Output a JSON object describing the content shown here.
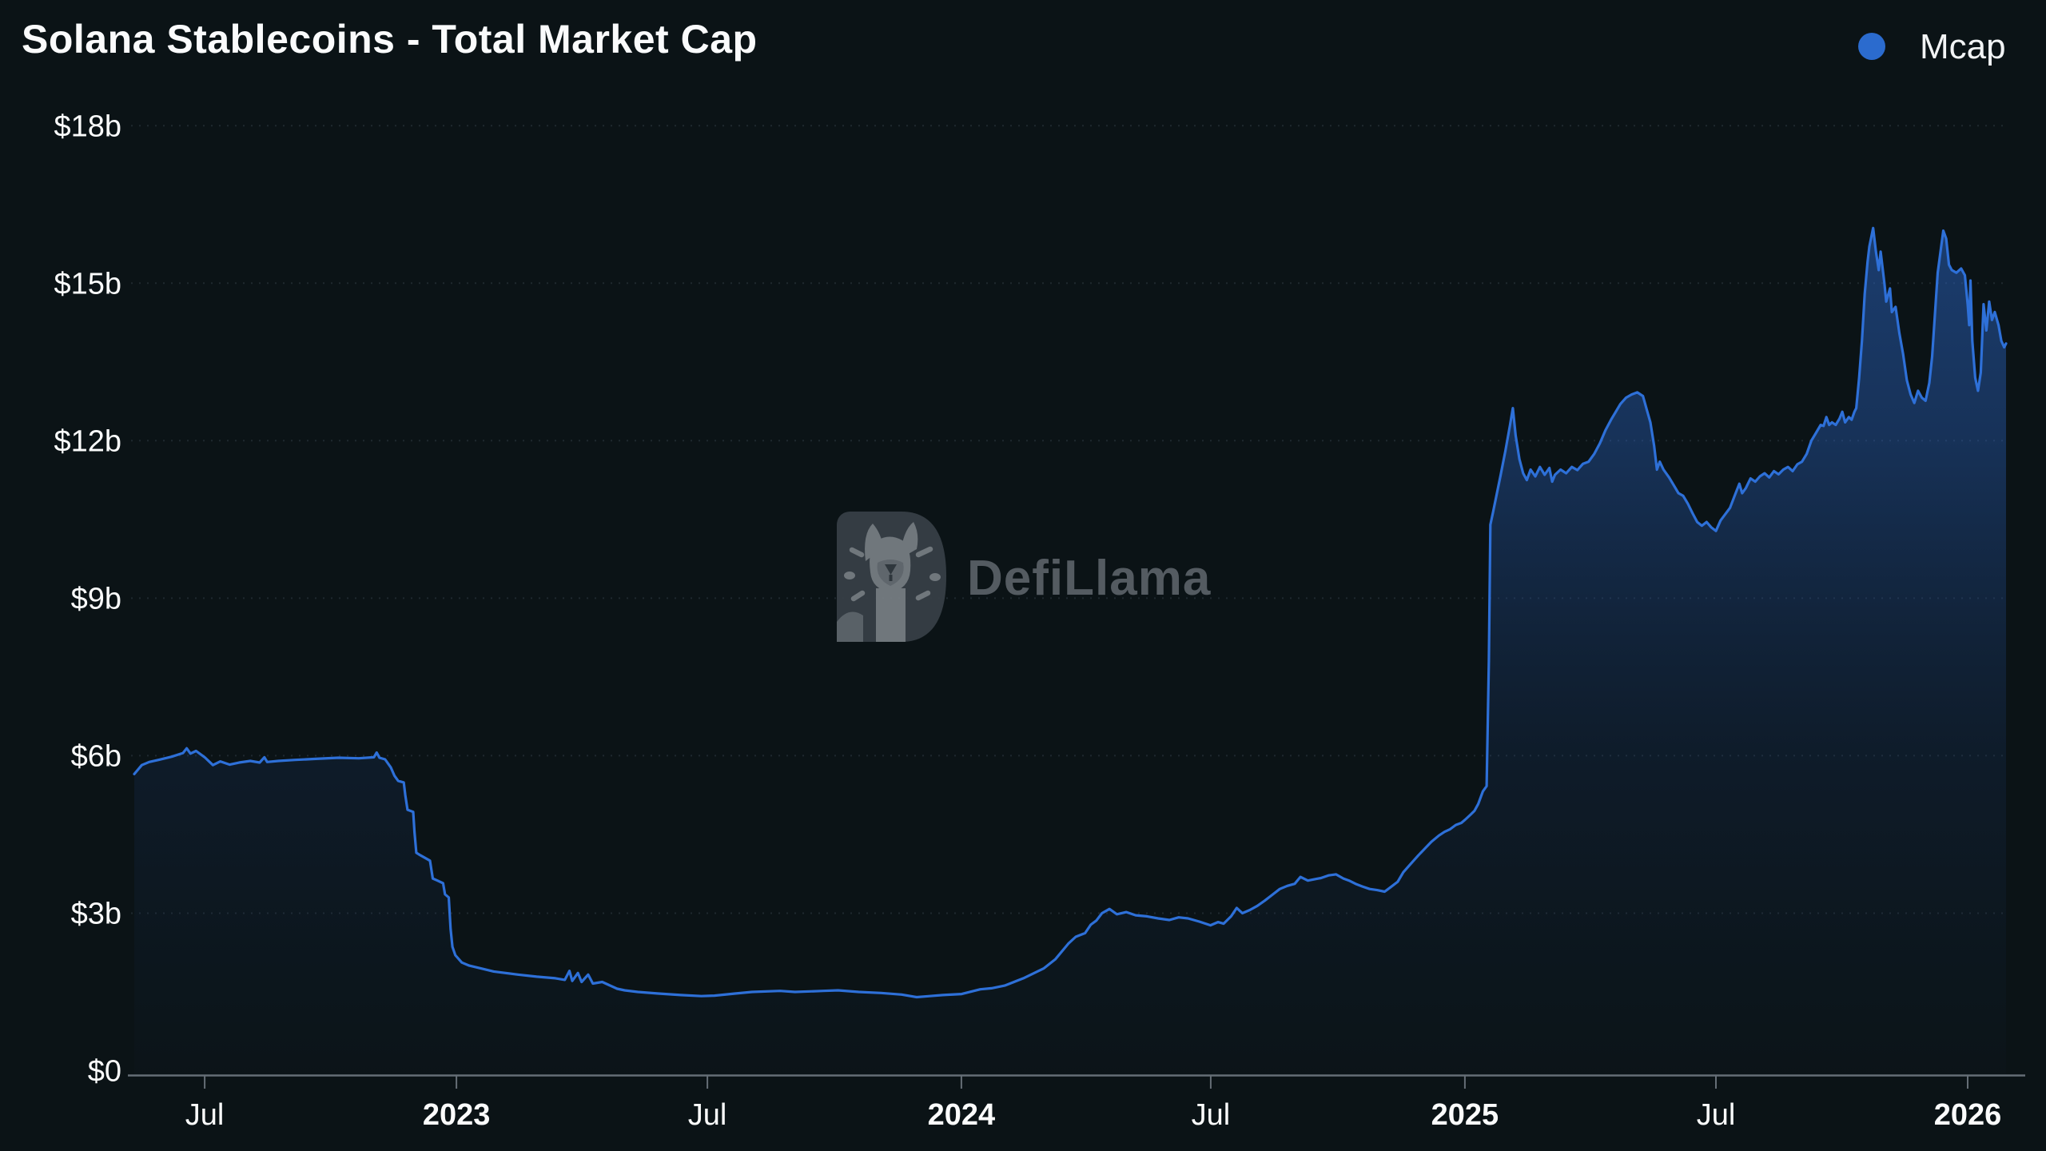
{
  "page": {
    "background": "#0b1316"
  },
  "header": {
    "title": "Solana Stablecoins - Total Market Cap"
  },
  "legend": {
    "items": [
      {
        "label": "Mcap",
        "color": "#2b6bce"
      }
    ]
  },
  "watermark": {
    "text": "DefiLlama"
  },
  "chart_data": {
    "type": "area",
    "title": "Solana Stablecoins - Total Market Cap",
    "xlabel": "",
    "ylabel": "",
    "ylim": [
      0,
      18
    ],
    "grid": "dotted-horizontal",
    "legend_position": "top-right",
    "line_color": "#2e70d8",
    "y_ticks": [
      {
        "value": 0,
        "label": "$0"
      },
      {
        "value": 3,
        "label": "$3b"
      },
      {
        "value": 6,
        "label": "$6b"
      },
      {
        "value": 9,
        "label": "$9b"
      },
      {
        "value": 12,
        "label": "$12b"
      },
      {
        "value": 15,
        "label": "$15b"
      },
      {
        "value": 18,
        "label": "$18b"
      }
    ],
    "x_ticks": [
      {
        "f": 0.0376,
        "label": "Jul",
        "bold": false
      },
      {
        "f": 0.1721,
        "label": "2023",
        "bold": true
      },
      {
        "f": 0.3062,
        "label": "Jul",
        "bold": false
      },
      {
        "f": 0.4419,
        "label": "2024",
        "bold": true
      },
      {
        "f": 0.5751,
        "label": "Jul",
        "bold": false
      },
      {
        "f": 0.7109,
        "label": "2025",
        "bold": true
      },
      {
        "f": 0.845,
        "label": "Jul",
        "bold": false
      },
      {
        "f": 0.9795,
        "label": "2026",
        "bold": true
      }
    ],
    "series": [
      {
        "name": "Mcap",
        "color": "#2e70d8",
        "unit": "$b",
        "points": [
          [
            0.0,
            5.65
          ],
          [
            0.004,
            5.82
          ],
          [
            0.008,
            5.88
          ],
          [
            0.013,
            5.92
          ],
          [
            0.02,
            5.98
          ],
          [
            0.026,
            6.05
          ],
          [
            0.028,
            6.14
          ],
          [
            0.03,
            6.04
          ],
          [
            0.033,
            6.09
          ],
          [
            0.0376,
            5.97
          ],
          [
            0.042,
            5.82
          ],
          [
            0.046,
            5.89
          ],
          [
            0.051,
            5.83
          ],
          [
            0.056,
            5.87
          ],
          [
            0.062,
            5.9
          ],
          [
            0.067,
            5.87
          ],
          [
            0.0695,
            5.97
          ],
          [
            0.071,
            5.88
          ],
          [
            0.077,
            5.9
          ],
          [
            0.086,
            5.92
          ],
          [
            0.097,
            5.94
          ],
          [
            0.109,
            5.96
          ],
          [
            0.12,
            5.95
          ],
          [
            0.128,
            5.97
          ],
          [
            0.1295,
            6.06
          ],
          [
            0.131,
            5.96
          ],
          [
            0.134,
            5.93
          ],
          [
            0.137,
            5.78
          ],
          [
            0.139,
            5.62
          ],
          [
            0.141,
            5.52
          ],
          [
            0.144,
            5.49
          ],
          [
            0.1448,
            5.25
          ],
          [
            0.146,
            4.97
          ],
          [
            0.149,
            4.93
          ],
          [
            0.1497,
            4.55
          ],
          [
            0.1507,
            4.15
          ],
          [
            0.153,
            4.1
          ],
          [
            0.155,
            4.06
          ],
          [
            0.158,
            4.0
          ],
          [
            0.1595,
            3.66
          ],
          [
            0.162,
            3.62
          ],
          [
            0.165,
            3.57
          ],
          [
            0.166,
            3.36
          ],
          [
            0.168,
            3.3
          ],
          [
            0.169,
            2.7
          ],
          [
            0.17,
            2.36
          ],
          [
            0.1715,
            2.2
          ],
          [
            0.175,
            2.06
          ],
          [
            0.179,
            2.0
          ],
          [
            0.185,
            1.95
          ],
          [
            0.192,
            1.89
          ],
          [
            0.205,
            1.83
          ],
          [
            0.215,
            1.79
          ],
          [
            0.225,
            1.76
          ],
          [
            0.23,
            1.73
          ],
          [
            0.2325,
            1.9
          ],
          [
            0.234,
            1.71
          ],
          [
            0.237,
            1.86
          ],
          [
            0.239,
            1.69
          ],
          [
            0.2425,
            1.83
          ],
          [
            0.245,
            1.66
          ],
          [
            0.25,
            1.69
          ],
          [
            0.258,
            1.56
          ],
          [
            0.262,
            1.53
          ],
          [
            0.269,
            1.5
          ],
          [
            0.28,
            1.47
          ],
          [
            0.292,
            1.44
          ],
          [
            0.303,
            1.42
          ],
          [
            0.31,
            1.43
          ],
          [
            0.321,
            1.47
          ],
          [
            0.33,
            1.5
          ],
          [
            0.345,
            1.52
          ],
          [
            0.353,
            1.5
          ],
          [
            0.368,
            1.52
          ],
          [
            0.376,
            1.53
          ],
          [
            0.387,
            1.5
          ],
          [
            0.399,
            1.48
          ],
          [
            0.41,
            1.45
          ],
          [
            0.418,
            1.4
          ],
          [
            0.425,
            1.42
          ],
          [
            0.432,
            1.44
          ],
          [
            0.442,
            1.46
          ],
          [
            0.452,
            1.55
          ],
          [
            0.458,
            1.57
          ],
          [
            0.465,
            1.62
          ],
          [
            0.475,
            1.76
          ],
          [
            0.486,
            1.95
          ],
          [
            0.492,
            2.12
          ],
          [
            0.499,
            2.42
          ],
          [
            0.503,
            2.55
          ],
          [
            0.508,
            2.62
          ],
          [
            0.511,
            2.78
          ],
          [
            0.514,
            2.86
          ],
          [
            0.517,
            3.0
          ],
          [
            0.521,
            3.08
          ],
          [
            0.525,
            2.98
          ],
          [
            0.53,
            3.02
          ],
          [
            0.535,
            2.96
          ],
          [
            0.541,
            2.94
          ],
          [
            0.547,
            2.9
          ],
          [
            0.553,
            2.87
          ],
          [
            0.558,
            2.92
          ],
          [
            0.563,
            2.9
          ],
          [
            0.569,
            2.84
          ],
          [
            0.575,
            2.77
          ],
          [
            0.579,
            2.83
          ],
          [
            0.582,
            2.8
          ],
          [
            0.586,
            2.94
          ],
          [
            0.589,
            3.1
          ],
          [
            0.592,
            3.0
          ],
          [
            0.596,
            3.06
          ],
          [
            0.6,
            3.14
          ],
          [
            0.604,
            3.24
          ],
          [
            0.608,
            3.35
          ],
          [
            0.612,
            3.46
          ],
          [
            0.616,
            3.52
          ],
          [
            0.62,
            3.56
          ],
          [
            0.623,
            3.69
          ],
          [
            0.627,
            3.62
          ],
          [
            0.631,
            3.65
          ],
          [
            0.634,
            3.67
          ],
          [
            0.638,
            3.72
          ],
          [
            0.642,
            3.74
          ],
          [
            0.646,
            3.66
          ],
          [
            0.649,
            3.62
          ],
          [
            0.653,
            3.55
          ],
          [
            0.656,
            3.51
          ],
          [
            0.66,
            3.46
          ],
          [
            0.664,
            3.44
          ],
          [
            0.668,
            3.41
          ],
          [
            0.671,
            3.49
          ],
          [
            0.675,
            3.6
          ],
          [
            0.678,
            3.78
          ],
          [
            0.682,
            3.94
          ],
          [
            0.686,
            4.1
          ],
          [
            0.69,
            4.25
          ],
          [
            0.693,
            4.36
          ],
          [
            0.697,
            4.48
          ],
          [
            0.7,
            4.55
          ],
          [
            0.703,
            4.6
          ],
          [
            0.706,
            4.68
          ],
          [
            0.709,
            4.72
          ],
          [
            0.711,
            4.78
          ],
          [
            0.714,
            4.88
          ],
          [
            0.716,
            4.95
          ],
          [
            0.718,
            5.08
          ],
          [
            0.7205,
            5.32
          ],
          [
            0.7225,
            5.42
          ],
          [
            0.7237,
            7.8
          ],
          [
            0.7245,
            10.4
          ],
          [
            0.726,
            10.65
          ],
          [
            0.728,
            11.0
          ],
          [
            0.73,
            11.35
          ],
          [
            0.7325,
            11.8
          ],
          [
            0.735,
            12.3
          ],
          [
            0.7365,
            12.62
          ],
          [
            0.738,
            12.1
          ],
          [
            0.74,
            11.65
          ],
          [
            0.742,
            11.38
          ],
          [
            0.744,
            11.25
          ],
          [
            0.746,
            11.45
          ],
          [
            0.7485,
            11.32
          ],
          [
            0.751,
            11.5
          ],
          [
            0.7535,
            11.35
          ],
          [
            0.756,
            11.48
          ],
          [
            0.7575,
            11.22
          ],
          [
            0.759,
            11.35
          ],
          [
            0.762,
            11.45
          ],
          [
            0.765,
            11.38
          ],
          [
            0.768,
            11.5
          ],
          [
            0.771,
            11.44
          ],
          [
            0.774,
            11.56
          ],
          [
            0.777,
            11.6
          ],
          [
            0.78,
            11.75
          ],
          [
            0.783,
            11.95
          ],
          [
            0.786,
            12.2
          ],
          [
            0.789,
            12.4
          ],
          [
            0.7915,
            12.55
          ],
          [
            0.794,
            12.7
          ],
          [
            0.797,
            12.82
          ],
          [
            0.8,
            12.88
          ],
          [
            0.803,
            12.92
          ],
          [
            0.806,
            12.85
          ],
          [
            0.808,
            12.6
          ],
          [
            0.81,
            12.35
          ],
          [
            0.812,
            11.9
          ],
          [
            0.8135,
            11.45
          ],
          [
            0.815,
            11.6
          ],
          [
            0.817,
            11.45
          ],
          [
            0.82,
            11.3
          ],
          [
            0.8225,
            11.15
          ],
          [
            0.825,
            11.0
          ],
          [
            0.8275,
            10.95
          ],
          [
            0.83,
            10.8
          ],
          [
            0.8325,
            10.62
          ],
          [
            0.835,
            10.45
          ],
          [
            0.8375,
            10.38
          ],
          [
            0.84,
            10.45
          ],
          [
            0.8425,
            10.35
          ],
          [
            0.845,
            10.28
          ],
          [
            0.8475,
            10.48
          ],
          [
            0.85,
            10.6
          ],
          [
            0.8525,
            10.72
          ],
          [
            0.855,
            10.95
          ],
          [
            0.8575,
            11.18
          ],
          [
            0.859,
            11.0
          ],
          [
            0.861,
            11.1
          ],
          [
            0.8635,
            11.28
          ],
          [
            0.866,
            11.22
          ],
          [
            0.8685,
            11.32
          ],
          [
            0.871,
            11.38
          ],
          [
            0.8735,
            11.3
          ],
          [
            0.876,
            11.42
          ],
          [
            0.8785,
            11.36
          ],
          [
            0.881,
            11.45
          ],
          [
            0.8835,
            11.5
          ],
          [
            0.886,
            11.42
          ],
          [
            0.8885,
            11.55
          ],
          [
            0.891,
            11.6
          ],
          [
            0.8935,
            11.75
          ],
          [
            0.896,
            12.0
          ],
          [
            0.8985,
            12.15
          ],
          [
            0.901,
            12.3
          ],
          [
            0.9025,
            12.28
          ],
          [
            0.904,
            12.45
          ],
          [
            0.9055,
            12.3
          ],
          [
            0.907,
            12.35
          ],
          [
            0.909,
            12.3
          ],
          [
            0.911,
            12.42
          ],
          [
            0.9125,
            12.55
          ],
          [
            0.914,
            12.35
          ],
          [
            0.916,
            12.45
          ],
          [
            0.9175,
            12.4
          ],
          [
            0.919,
            12.55
          ],
          [
            0.92,
            12.62
          ],
          [
            0.9215,
            13.2
          ],
          [
            0.923,
            13.9
          ],
          [
            0.9245,
            14.8
          ],
          [
            0.926,
            15.4
          ],
          [
            0.927,
            15.7
          ],
          [
            0.929,
            16.05
          ],
          [
            0.9305,
            15.6
          ],
          [
            0.932,
            15.25
          ],
          [
            0.933,
            15.6
          ],
          [
            0.935,
            15.0
          ],
          [
            0.936,
            14.65
          ],
          [
            0.938,
            14.9
          ],
          [
            0.939,
            14.45
          ],
          [
            0.941,
            14.55
          ],
          [
            0.943,
            14.05
          ],
          [
            0.945,
            13.65
          ],
          [
            0.947,
            13.15
          ],
          [
            0.949,
            12.88
          ],
          [
            0.951,
            12.72
          ],
          [
            0.953,
            12.95
          ],
          [
            0.955,
            12.82
          ],
          [
            0.957,
            12.76
          ],
          [
            0.959,
            13.1
          ],
          [
            0.9605,
            13.6
          ],
          [
            0.962,
            14.4
          ],
          [
            0.9635,
            15.2
          ],
          [
            0.965,
            15.6
          ],
          [
            0.9665,
            16.0
          ],
          [
            0.968,
            15.85
          ],
          [
            0.9695,
            15.35
          ],
          [
            0.971,
            15.25
          ],
          [
            0.9735,
            15.2
          ],
          [
            0.976,
            15.28
          ],
          [
            0.978,
            15.15
          ],
          [
            0.9795,
            14.6
          ],
          [
            0.9803,
            14.2
          ],
          [
            0.981,
            15.05
          ],
          [
            0.982,
            13.9
          ],
          [
            0.9835,
            13.2
          ],
          [
            0.985,
            12.95
          ],
          [
            0.9865,
            13.3
          ],
          [
            0.988,
            14.6
          ],
          [
            0.9895,
            14.1
          ],
          [
            0.991,
            14.65
          ],
          [
            0.9925,
            14.3
          ],
          [
            0.994,
            14.45
          ],
          [
            0.996,
            14.2
          ],
          [
            0.9975,
            13.9
          ],
          [
            0.999,
            13.78
          ],
          [
            1.0,
            13.85
          ]
        ]
      }
    ]
  }
}
